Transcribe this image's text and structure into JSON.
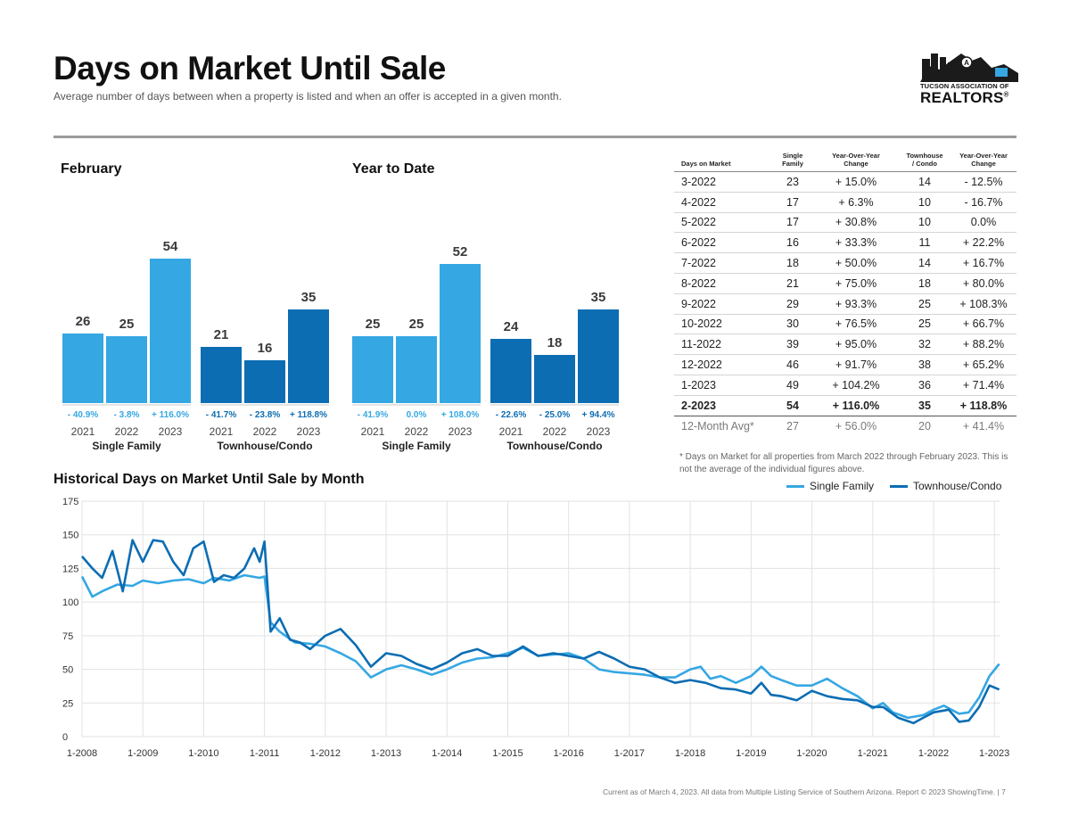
{
  "header": {
    "title": "Days on Market Until Sale",
    "subtitle": "Average number of days between when a property is listed and when an offer is accepted in a given month.",
    "logo_line1": "TUCSON ASSOCIATION OF",
    "logo_line2": "REALTORS",
    "logo_mark": "®"
  },
  "colors": {
    "single_family": "#35a7e3",
    "townhouse": "#0c6db3",
    "text": "#1a1a1a",
    "grid": "#e2e2e2"
  },
  "sections": {
    "february": "February",
    "ytd": "Year to Date"
  },
  "table": {
    "headers": [
      "Days on Market",
      "Single\nFamily",
      "Year-Over-Year\nChange",
      "Townhouse\n/ Condo",
      "Year-Over-Year\nChange"
    ],
    "rows": [
      [
        "3-2022",
        "23",
        "+ 15.0%",
        "14",
        "- 12.5%"
      ],
      [
        "4-2022",
        "17",
        "+ 6.3%",
        "10",
        "- 16.7%"
      ],
      [
        "5-2022",
        "17",
        "+ 30.8%",
        "10",
        "0.0%"
      ],
      [
        "6-2022",
        "16",
        "+ 33.3%",
        "11",
        "+ 22.2%"
      ],
      [
        "7-2022",
        "18",
        "+ 50.0%",
        "14",
        "+ 16.7%"
      ],
      [
        "8-2022",
        "21",
        "+ 75.0%",
        "18",
        "+ 80.0%"
      ],
      [
        "9-2022",
        "29",
        "+ 93.3%",
        "25",
        "+ 108.3%"
      ],
      [
        "10-2022",
        "30",
        "+ 76.5%",
        "25",
        "+ 66.7%"
      ],
      [
        "11-2022",
        "39",
        "+ 95.0%",
        "32",
        "+ 88.2%"
      ],
      [
        "12-2022",
        "46",
        "+ 91.7%",
        "38",
        "+ 65.2%"
      ],
      [
        "1-2023",
        "49",
        "+ 104.2%",
        "36",
        "+ 71.4%"
      ],
      [
        "2-2023",
        "54",
        "+ 116.0%",
        "35",
        "+ 118.8%"
      ]
    ],
    "avg_row": [
      "12-Month Avg*",
      "27",
      "+ 56.0%",
      "20",
      "+ 41.4%"
    ],
    "footnote": "* Days on Market for all properties from March 2022 through February 2023. This is not the average of the individual figures above."
  },
  "historical": {
    "title": "Historical Days on Market Until Sale by Month",
    "legend": [
      "Single Family",
      "Townhouse/Condo"
    ]
  },
  "footer": "Current as of March 4, 2023. All data from Multiple Listing Service of Southern Arizona. Report © 2023 ShowingTime. | 7",
  "chart_data": [
    {
      "type": "bar",
      "title": "February",
      "groups": [
        {
          "name": "Single Family",
          "categories": [
            "2021",
            "2022",
            "2023"
          ],
          "values": [
            26,
            25,
            54
          ],
          "changes": [
            "- 40.9%",
            "- 3.8%",
            "+ 116.0%"
          ]
        },
        {
          "name": "Townhouse/Condo",
          "categories": [
            "2021",
            "2022",
            "2023"
          ],
          "values": [
            21,
            16,
            35
          ],
          "changes": [
            "- 41.7%",
            "- 23.8%",
            "+ 118.8%"
          ]
        }
      ]
    },
    {
      "type": "bar",
      "title": "Year to Date",
      "groups": [
        {
          "name": "Single Family",
          "categories": [
            "2021",
            "2022",
            "2023"
          ],
          "values": [
            25,
            25,
            52
          ],
          "changes": [
            "- 41.9%",
            "0.0%",
            "+ 108.0%"
          ]
        },
        {
          "name": "Townhouse/Condo",
          "categories": [
            "2021",
            "2022",
            "2023"
          ],
          "values": [
            24,
            18,
            35
          ],
          "changes": [
            "- 22.6%",
            "- 25.0%",
            "+ 94.4%"
          ]
        }
      ]
    },
    {
      "type": "line",
      "title": "Historical Days on Market Until Sale by Month",
      "ylim": [
        0,
        175
      ],
      "yticks": [
        0,
        25,
        50,
        75,
        100,
        125,
        150,
        175
      ],
      "xlim": [
        2008.0,
        2023.1
      ],
      "xticks": [
        "1-2008",
        "1-2009",
        "1-2010",
        "1-2011",
        "1-2012",
        "1-2013",
        "1-2014",
        "1-2015",
        "1-2016",
        "1-2017",
        "1-2018",
        "1-2019",
        "1-2020",
        "1-2021",
        "1-2022",
        "1-2023"
      ],
      "grid": true,
      "legend_position": "top-right",
      "series": [
        {
          "name": "Single Family",
          "points": [
            [
              2008.0,
              119
            ],
            [
              2008.17,
              104
            ],
            [
              2008.33,
              108
            ],
            [
              2008.58,
              113
            ],
            [
              2008.83,
              112
            ],
            [
              2009.0,
              116
            ],
            [
              2009.25,
              114
            ],
            [
              2009.5,
              116
            ],
            [
              2009.75,
              117
            ],
            [
              2010.0,
              114
            ],
            [
              2010.17,
              118
            ],
            [
              2010.42,
              116
            ],
            [
              2010.67,
              120
            ],
            [
              2010.92,
              118
            ],
            [
              2011.0,
              119
            ],
            [
              2011.1,
              85
            ],
            [
              2011.25,
              78
            ],
            [
              2011.5,
              70
            ],
            [
              2011.75,
              69
            ],
            [
              2012.0,
              67
            ],
            [
              2012.25,
              62
            ],
            [
              2012.5,
              56
            ],
            [
              2012.75,
              44
            ],
            [
              2013.0,
              50
            ],
            [
              2013.25,
              53
            ],
            [
              2013.5,
              50
            ],
            [
              2013.75,
              46
            ],
            [
              2014.0,
              50
            ],
            [
              2014.25,
              55
            ],
            [
              2014.5,
              58
            ],
            [
              2014.75,
              59
            ],
            [
              2015.0,
              62
            ],
            [
              2015.25,
              66
            ],
            [
              2015.5,
              60
            ],
            [
              2015.75,
              61
            ],
            [
              2016.0,
              62
            ],
            [
              2016.25,
              58
            ],
            [
              2016.5,
              50
            ],
            [
              2016.75,
              48
            ],
            [
              2017.0,
              47
            ],
            [
              2017.25,
              46
            ],
            [
              2017.5,
              44
            ],
            [
              2017.75,
              44
            ],
            [
              2018.0,
              50
            ],
            [
              2018.17,
              52
            ],
            [
              2018.33,
              43
            ],
            [
              2018.5,
              45
            ],
            [
              2018.75,
              40
            ],
            [
              2019.0,
              45
            ],
            [
              2019.17,
              52
            ],
            [
              2019.33,
              45
            ],
            [
              2019.5,
              42
            ],
            [
              2019.75,
              38
            ],
            [
              2020.0,
              38
            ],
            [
              2020.25,
              43
            ],
            [
              2020.5,
              36
            ],
            [
              2020.75,
              30
            ],
            [
              2021.0,
              21
            ],
            [
              2021.17,
              25
            ],
            [
              2021.33,
              18
            ],
            [
              2021.58,
              14
            ],
            [
              2021.83,
              16
            ],
            [
              2022.0,
              20
            ],
            [
              2022.17,
              23
            ],
            [
              2022.42,
              17
            ],
            [
              2022.58,
              18
            ],
            [
              2022.75,
              29
            ],
            [
              2022.92,
              45
            ],
            [
              2023.08,
              54
            ]
          ]
        },
        {
          "name": "Townhouse/Condo",
          "points": [
            [
              2008.0,
              134
            ],
            [
              2008.17,
              125
            ],
            [
              2008.33,
              118
            ],
            [
              2008.5,
              138
            ],
            [
              2008.67,
              108
            ],
            [
              2008.83,
              146
            ],
            [
              2009.0,
              130
            ],
            [
              2009.17,
              146
            ],
            [
              2009.33,
              145
            ],
            [
              2009.5,
              130
            ],
            [
              2009.67,
              120
            ],
            [
              2009.83,
              140
            ],
            [
              2010.0,
              145
            ],
            [
              2010.17,
              115
            ],
            [
              2010.33,
              120
            ],
            [
              2010.5,
              118
            ],
            [
              2010.67,
              125
            ],
            [
              2010.83,
              140
            ],
            [
              2010.92,
              130
            ],
            [
              2011.0,
              145
            ],
            [
              2011.1,
              78
            ],
            [
              2011.25,
              88
            ],
            [
              2011.42,
              72
            ],
            [
              2011.58,
              70
            ],
            [
              2011.75,
              65
            ],
            [
              2012.0,
              75
            ],
            [
              2012.25,
              80
            ],
            [
              2012.5,
              68
            ],
            [
              2012.75,
              52
            ],
            [
              2013.0,
              62
            ],
            [
              2013.25,
              60
            ],
            [
              2013.5,
              54
            ],
            [
              2013.75,
              50
            ],
            [
              2014.0,
              55
            ],
            [
              2014.25,
              62
            ],
            [
              2014.5,
              65
            ],
            [
              2014.75,
              60
            ],
            [
              2015.0,
              60
            ],
            [
              2015.25,
              67
            ],
            [
              2015.5,
              60
            ],
            [
              2015.75,
              62
            ],
            [
              2016.0,
              60
            ],
            [
              2016.25,
              58
            ],
            [
              2016.5,
              63
            ],
            [
              2016.75,
              58
            ],
            [
              2017.0,
              52
            ],
            [
              2017.25,
              50
            ],
            [
              2017.5,
              44
            ],
            [
              2017.75,
              40
            ],
            [
              2018.0,
              42
            ],
            [
              2018.25,
              40
            ],
            [
              2018.5,
              36
            ],
            [
              2018.75,
              35
            ],
            [
              2019.0,
              32
            ],
            [
              2019.17,
              40
            ],
            [
              2019.33,
              31
            ],
            [
              2019.5,
              30
            ],
            [
              2019.75,
              27
            ],
            [
              2020.0,
              34
            ],
            [
              2020.25,
              30
            ],
            [
              2020.5,
              28
            ],
            [
              2020.75,
              27
            ],
            [
              2021.0,
              22
            ],
            [
              2021.17,
              22
            ],
            [
              2021.42,
              14
            ],
            [
              2021.67,
              10
            ],
            [
              2021.83,
              14
            ],
            [
              2022.0,
              18
            ],
            [
              2022.25,
              20
            ],
            [
              2022.42,
              11
            ],
            [
              2022.58,
              12
            ],
            [
              2022.75,
              22
            ],
            [
              2022.92,
              38
            ],
            [
              2023.08,
              35
            ]
          ]
        }
      ]
    }
  ]
}
